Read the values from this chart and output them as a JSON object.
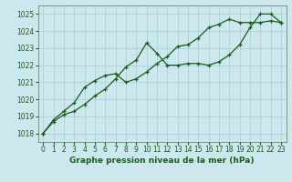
{
  "title": "Graphe pression niveau de la mer (hPa)",
  "xlim": [
    -0.5,
    23.5
  ],
  "ylim": [
    1017.5,
    1025.5
  ],
  "yticks": [
    1018,
    1019,
    1020,
    1021,
    1022,
    1023,
    1024,
    1025
  ],
  "xticks": [
    0,
    1,
    2,
    3,
    4,
    5,
    6,
    7,
    8,
    9,
    10,
    11,
    12,
    13,
    14,
    15,
    16,
    17,
    18,
    19,
    20,
    21,
    22,
    23
  ],
  "background_color": "#cce8ee",
  "grid_color": "#aad4d8",
  "line_color": "#1a5c1a",
  "line1_y": [
    1018.0,
    1018.7,
    1019.1,
    1019.3,
    1019.7,
    1020.2,
    1020.6,
    1021.2,
    1021.9,
    1022.3,
    1023.3,
    1022.7,
    1022.0,
    1022.0,
    1022.1,
    1022.1,
    1022.0,
    1022.2,
    1022.6,
    1023.2,
    1024.2,
    1025.0,
    1025.0,
    1024.5
  ],
  "line2_y": [
    1018.0,
    1018.8,
    1019.3,
    1019.8,
    1020.7,
    1021.1,
    1021.4,
    1021.5,
    1021.0,
    1021.2,
    1021.6,
    1022.1,
    1022.5,
    1023.1,
    1023.2,
    1023.6,
    1024.2,
    1024.4,
    1024.7,
    1024.5,
    1024.5,
    1024.5,
    1024.6,
    1024.5
  ],
  "tick_fontsize": 5.5,
  "xlabel_fontsize": 6.5
}
